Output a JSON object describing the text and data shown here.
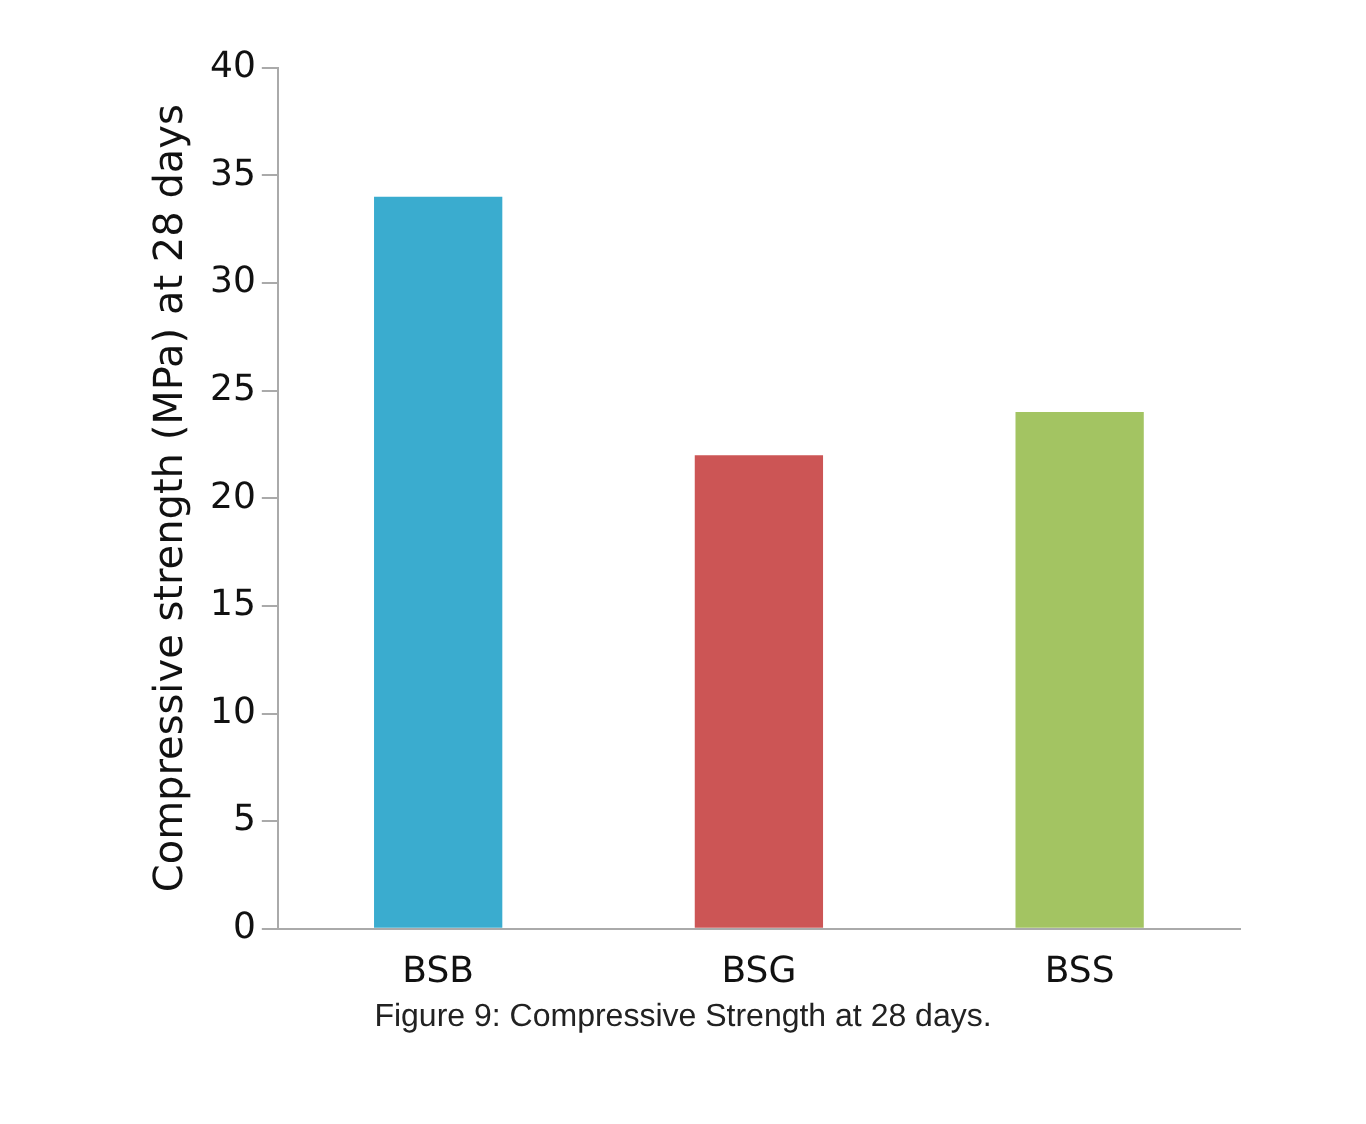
{
  "chart_data": {
    "type": "bar",
    "ylabel": "Compressive strength (MPa) at 28 days",
    "categories": [
      "BSB",
      "BSG",
      "BSS"
    ],
    "values": [
      34,
      22,
      24
    ],
    "colors": [
      "#3aaccf",
      "#cc5555",
      "#a3c462"
    ],
    "ylim": [
      0,
      40
    ],
    "yticks": [
      0,
      5,
      10,
      15,
      20,
      25,
      30,
      35,
      40
    ],
    "grid": false,
    "legend": false,
    "annotations": [
      "Figure 9: Compressive Strength at 28 days."
    ]
  }
}
